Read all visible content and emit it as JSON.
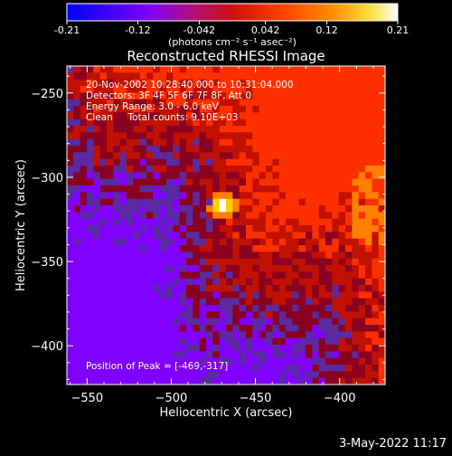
{
  "colorbar": {
    "tick_labels": [
      "-0.21",
      "-0.12",
      "-0.042",
      "0.042",
      "0.12",
      "0.21"
    ],
    "tick_values": [
      -0.21,
      -0.12,
      -0.042,
      0.042,
      0.12,
      0.21
    ],
    "range": [
      -0.21,
      0.21
    ],
    "units_label": "(photons cm⁻² s⁻¹ asec⁻²)"
  },
  "chart_data": {
    "type": "heatmap",
    "title": "Reconstructed RHESSI Image",
    "xlabel": "Heliocentric X (arcsec)",
    "ylabel": "Heliocentric Y (arcsec)",
    "xlim": [
      -562,
      -373
    ],
    "ylim": [
      -423,
      -234
    ],
    "x_ticks": [
      -550,
      -500,
      -450,
      -400
    ],
    "x_tick_labels": [
      "−550",
      "−500",
      "−450",
      "−400"
    ],
    "y_ticks": [
      -250,
      -300,
      -350,
      -400
    ],
    "y_tick_labels": [
      "−250",
      "−300",
      "−350",
      "−400"
    ],
    "peak": {
      "x": -469,
      "y": -317
    },
    "color_palette": [
      "#0000ff",
      "#8000ff",
      "#5a2aa0",
      "#8a0020",
      "#c01000",
      "#ff3000",
      "#ff8000",
      "#ffd000",
      "#ffffff"
    ],
    "info_lines": [
      "20-Nov-2002 10:28:40.000 to 10:31:04.000",
      "Detectors: 3F 4F 5F 6F 7F 8F, Att 0",
      "Energy Range: 3.0 - 6.0 keV",
      "Clean     Total counts: 9.10E+03"
    ],
    "peak_label": "Position of Peak = [-469,-317]"
  },
  "footer": {
    "date": "3-May-2022 11:17"
  }
}
